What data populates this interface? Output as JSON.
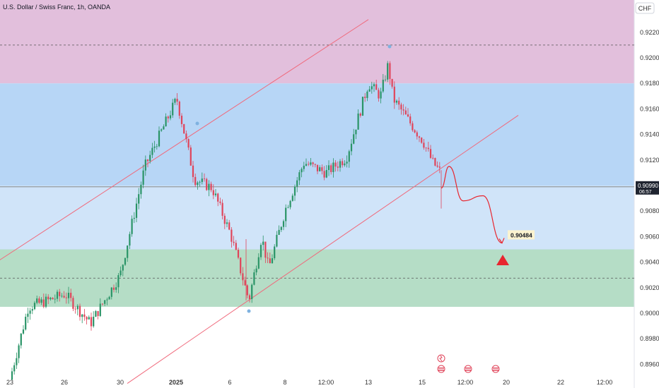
{
  "colors": {
    "supply_zone": "#e2bfdc",
    "mid_zone": "#b7d6f6",
    "demand_zone": "#b5ddc6",
    "channel": "#f06a7c",
    "candle_up": "#2a9467",
    "candle_down": "#e0445a",
    "projection": "#e8262f",
    "price_line": "#7a7a7a",
    "price_badge_bg": "#1f2430",
    "target_badge_bg": "#fbf3d0"
  },
  "header": {
    "symbol_title": "U.S. Dollar / Swiss Franc, 1h, OANDA"
  },
  "price_axis": {
    "currency_button": "CHF",
    "current_price": "0.90990",
    "countdown": "06:57"
  },
  "annotations": {
    "target_label": "0.90484"
  },
  "chart_data": {
    "type": "candlestick",
    "title": "U.S. Dollar / Swiss Franc, 1h, OANDA",
    "xlabel": "",
    "ylabel": "",
    "ylim": [
      0.8948,
      0.9238
    ],
    "y_tick_labels": [
      "0.89600",
      "0.89800",
      "0.90000",
      "0.90200",
      "0.90400",
      "0.90600",
      "0.90800",
      "0.91000",
      "0.91200",
      "0.91400",
      "0.91600",
      "0.91800",
      "0.92000",
      "0.92200"
    ],
    "x_tick_labels": [
      "23",
      "26",
      "30",
      "2025",
      "6",
      "8",
      "12:00",
      "13",
      "15",
      "12:00",
      "20",
      "22",
      "12:00"
    ],
    "price_path": [
      [
        "23",
        0.8948
      ],
      [
        "24",
        0.9005
      ],
      [
        "25",
        0.901
      ],
      [
        "26",
        0.9015
      ],
      [
        "27",
        0.8992
      ],
      [
        "30",
        0.903
      ],
      [
        "31",
        0.9115
      ],
      [
        "2025",
        0.9168
      ],
      [
        "3",
        0.9105
      ],
      [
        "4",
        0.9098
      ],
      [
        "6",
        0.9062
      ],
      [
        "6.5",
        0.901
      ],
      [
        "7",
        0.906
      ],
      [
        "7.5",
        0.9035
      ],
      [
        "8",
        0.9082
      ],
      [
        "9",
        0.9118
      ],
      [
        "12:00",
        0.911
      ],
      [
        "10",
        0.9122
      ],
      [
        "13",
        0.918
      ],
      [
        "13.5",
        0.917
      ],
      [
        "14",
        0.9195
      ],
      [
        "14.5",
        0.9168
      ],
      [
        "15",
        0.9135
      ],
      [
        "16",
        0.9118
      ],
      [
        "16.3",
        0.911
      ]
    ],
    "zones": [
      {
        "name": "supply",
        "from": 0.918,
        "to": 0.9238
      },
      {
        "name": "demand",
        "from": 0.9005,
        "to": 0.905
      }
    ],
    "channel": {
      "upper": [
        [
          "22",
          0.904
        ],
        [
          "13",
          0.923
        ]
      ],
      "lower": [
        [
          "29",
          0.8945
        ],
        [
          "19",
          0.9155
        ]
      ]
    },
    "projection": [
      [
        "16.3",
        0.9098
      ],
      [
        "16.7",
        0.9115
      ],
      [
        "17.4",
        0.9088
      ],
      [
        "18",
        0.9092
      ],
      [
        "18.6",
        0.9055
      ]
    ],
    "current_price": 0.9099,
    "target_price": 0.90484,
    "grid": false,
    "legend": "none"
  }
}
